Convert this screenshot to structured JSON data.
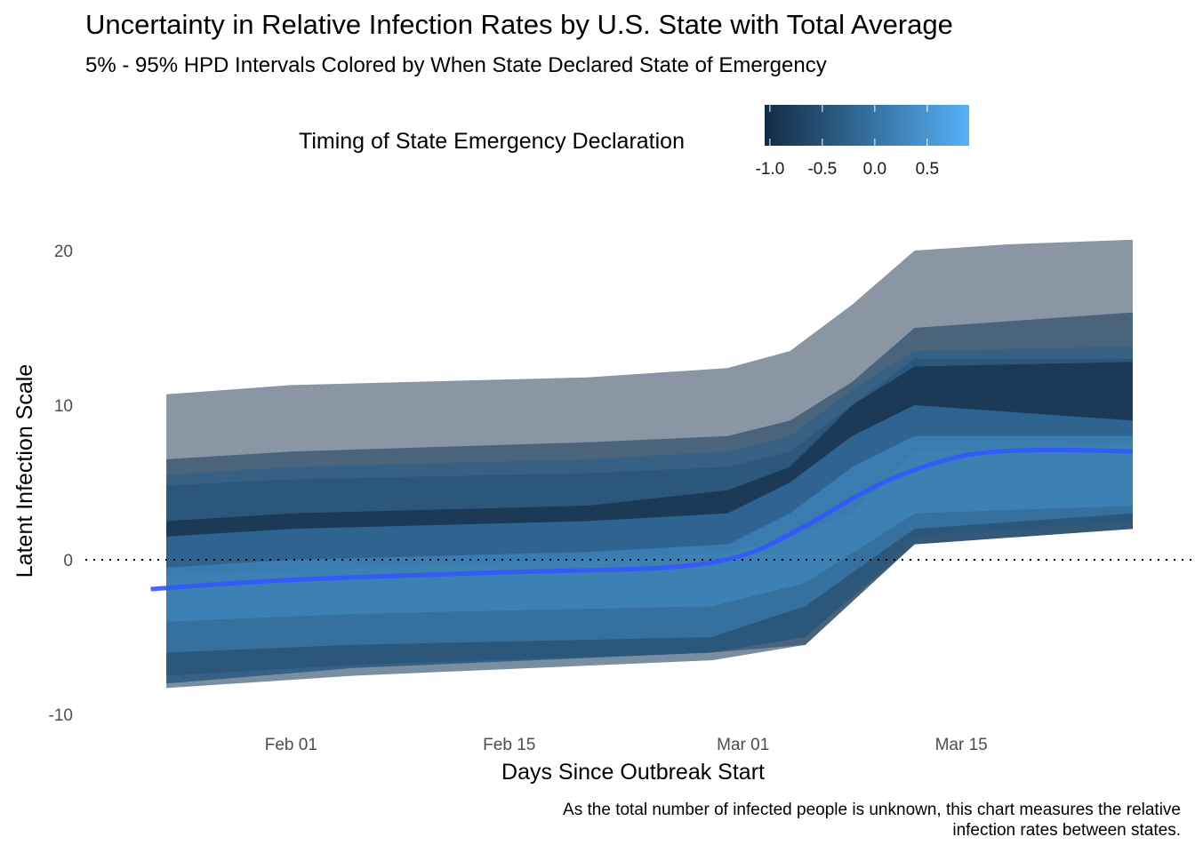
{
  "chart_data": {
    "type": "area",
    "title": "Uncertainty in Relative Infection Rates by U.S. State with Total Average",
    "subtitle": "5% - 95% HPD Intervals Colored by When State Declared State of Emergency",
    "xlabel": "Days Since Outbreak Start",
    "ylabel": "Latent Infection Scale",
    "caption_lines": [
      "As the total number of infected people is unknown, this chart measures the relative",
      "infection rates between states."
    ],
    "x_tick_labels": [
      {
        "date": "2020-02-01",
        "label": "Feb 01"
      },
      {
        "date": "2020-02-15",
        "label": "Feb 15"
      },
      {
        "date": "2020-03-01",
        "label": "Mar 01"
      },
      {
        "date": "2020-03-15",
        "label": "Mar 15"
      }
    ],
    "xlim": [
      "2020-01-22",
      "2020-03-26"
    ],
    "y_ticks": [
      -10,
      0,
      10,
      20
    ],
    "ylim": [
      -10,
      20.8
    ],
    "reference_line": {
      "y": 0,
      "style": "dotted"
    },
    "legend": {
      "title": "Timing of State Emergency Declaration",
      "position": "top",
      "range": [
        -1.05,
        0.9
      ],
      "ticks": [
        -1.0,
        -0.5,
        0.0,
        0.5
      ],
      "tick_labels": [
        "-1.0",
        "-0.5",
        "0.0",
        "0.5"
      ],
      "colors": [
        "#132b43",
        "#56b1f7"
      ]
    },
    "colors": {
      "average_line": "#3355ff",
      "dotted_line": "#000000"
    },
    "series": [
      {
        "value": -1.0,
        "opacity": 0.5,
        "lower": [
          [
            "2020-01-24",
            -8
          ],
          [
            "2020-02-05",
            -7
          ],
          [
            "2020-02-28",
            -6
          ],
          [
            "2020-03-05",
            -5.5
          ],
          [
            "2020-03-12",
            1
          ],
          [
            "2020-03-26",
            2
          ]
        ],
        "upper": [
          [
            "2020-01-24",
            10.7
          ],
          [
            "2020-02-01",
            11.3
          ],
          [
            "2020-02-20",
            11.8
          ],
          [
            "2020-02-29",
            12.4
          ],
          [
            "2020-03-04",
            13.5
          ],
          [
            "2020-03-08",
            16.5
          ],
          [
            "2020-03-12",
            20
          ],
          [
            "2020-03-18",
            20.4
          ],
          [
            "2020-03-26",
            20.7
          ]
        ]
      },
      {
        "value": -0.7,
        "opacity": 0.6,
        "lower": [
          [
            "2020-01-24",
            -8.3
          ],
          [
            "2020-02-05",
            -7.5
          ],
          [
            "2020-02-28",
            -6.5
          ],
          [
            "2020-03-05",
            -5.5
          ],
          [
            "2020-03-12",
            1
          ],
          [
            "2020-03-26",
            2
          ]
        ],
        "upper": [
          [
            "2020-01-24",
            6.5
          ],
          [
            "2020-02-01",
            7
          ],
          [
            "2020-02-20",
            7.6
          ],
          [
            "2020-02-29",
            8
          ],
          [
            "2020-03-04",
            9
          ],
          [
            "2020-03-08",
            11.5
          ],
          [
            "2020-03-12",
            15
          ],
          [
            "2020-03-26",
            16
          ]
        ]
      },
      {
        "value": -0.3,
        "opacity": 0.7,
        "lower": [
          [
            "2020-01-24",
            -8
          ],
          [
            "2020-02-05",
            -7
          ],
          [
            "2020-02-28",
            -6
          ],
          [
            "2020-03-05",
            -5
          ],
          [
            "2020-03-12",
            1.5
          ],
          [
            "2020-03-26",
            2.5
          ]
        ],
        "upper": [
          [
            "2020-01-24",
            5.5
          ],
          [
            "2020-02-01",
            6
          ],
          [
            "2020-02-20",
            6.5
          ],
          [
            "2020-02-29",
            7
          ],
          [
            "2020-03-04",
            8
          ],
          [
            "2020-03-08",
            11
          ],
          [
            "2020-03-12",
            13.5
          ],
          [
            "2020-03-26",
            13.8
          ]
        ]
      },
      {
        "value": -0.5,
        "opacity": 0.65,
        "lower": [
          [
            "2020-01-24",
            -7.5
          ],
          [
            "2020-02-05",
            -6.8
          ],
          [
            "2020-02-28",
            -6
          ],
          [
            "2020-03-05",
            -5
          ],
          [
            "2020-03-12",
            1
          ],
          [
            "2020-03-26",
            2
          ]
        ],
        "upper": [
          [
            "2020-01-24",
            4.8
          ],
          [
            "2020-02-01",
            5.2
          ],
          [
            "2020-02-20",
            5.6
          ],
          [
            "2020-02-29",
            6
          ],
          [
            "2020-03-04",
            7
          ],
          [
            "2020-03-08",
            10
          ],
          [
            "2020-03-12",
            13
          ],
          [
            "2020-03-26",
            13
          ]
        ]
      },
      {
        "value": -1.0,
        "opacity": 0.7,
        "lower": [
          [
            "2020-01-24",
            -1
          ],
          [
            "2020-02-05",
            -0.5
          ],
          [
            "2020-02-20",
            0
          ],
          [
            "2020-02-29",
            0.5
          ],
          [
            "2020-03-04",
            1.5
          ],
          [
            "2020-03-08",
            3
          ],
          [
            "2020-03-12",
            7
          ],
          [
            "2020-03-26",
            7.5
          ]
        ],
        "upper": [
          [
            "2020-01-24",
            2.5
          ],
          [
            "2020-02-01",
            3
          ],
          [
            "2020-02-20",
            3.5
          ],
          [
            "2020-02-29",
            4.5
          ],
          [
            "2020-03-04",
            6
          ],
          [
            "2020-03-08",
            10
          ],
          [
            "2020-03-12",
            12.5
          ],
          [
            "2020-03-26",
            12.8
          ]
        ]
      },
      {
        "value": 0.2,
        "opacity": 0.6,
        "lower": [
          [
            "2020-01-24",
            -6
          ],
          [
            "2020-02-05",
            -5.5
          ],
          [
            "2020-02-28",
            -5
          ],
          [
            "2020-03-05",
            -3
          ],
          [
            "2020-03-12",
            2
          ],
          [
            "2020-03-26",
            3
          ]
        ],
        "upper": [
          [
            "2020-01-24",
            1.5
          ],
          [
            "2020-02-01",
            2
          ],
          [
            "2020-02-20",
            2.5
          ],
          [
            "2020-02-29",
            3
          ],
          [
            "2020-03-04",
            5
          ],
          [
            "2020-03-08",
            8
          ],
          [
            "2020-03-12",
            10
          ],
          [
            "2020-03-26",
            9
          ]
        ]
      },
      {
        "value": 0.3,
        "opacity": 0.65,
        "lower": [
          [
            "2020-01-24",
            -4
          ],
          [
            "2020-02-05",
            -3.5
          ],
          [
            "2020-02-28",
            -3
          ],
          [
            "2020-03-05",
            -1.5
          ],
          [
            "2020-03-12",
            3
          ],
          [
            "2020-03-26",
            3.5
          ]
        ],
        "upper": [
          [
            "2020-01-24",
            -0.5
          ],
          [
            "2020-02-01",
            0
          ],
          [
            "2020-02-20",
            0.5
          ],
          [
            "2020-02-29",
            1
          ],
          [
            "2020-03-04",
            3
          ],
          [
            "2020-03-08",
            6
          ],
          [
            "2020-03-12",
            8
          ],
          [
            "2020-03-26",
            8
          ]
        ]
      }
    ],
    "average": {
      "name": "Total Average",
      "points": [
        [
          "2020-01-23",
          -1.9
        ],
        [
          "2020-02-01",
          -1.3
        ],
        [
          "2020-02-15",
          -0.8
        ],
        [
          "2020-02-25",
          -0.5
        ],
        [
          "2020-03-01",
          0.3
        ],
        [
          "2020-03-05",
          2.2
        ],
        [
          "2020-03-10",
          5
        ],
        [
          "2020-03-15",
          6.7
        ],
        [
          "2020-03-20",
          7.1
        ],
        [
          "2020-03-26",
          7.0
        ]
      ]
    }
  }
}
